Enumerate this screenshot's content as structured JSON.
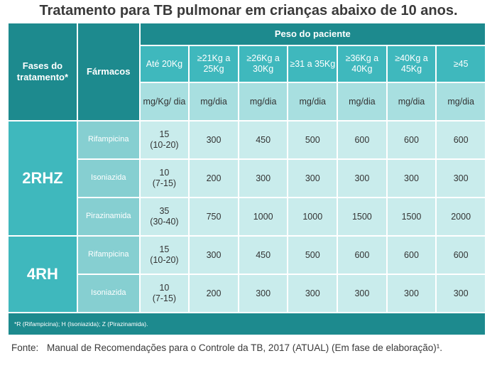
{
  "title": "Tratamento para TB pulmonar em crianças abaixo de 10 anos.",
  "header": {
    "phase_label": "Fases do tratamento*",
    "drug_label": "Fármacos",
    "weight_label": "Peso do paciente",
    "weight_ranges": [
      "Até 20Kg",
      "≥21Kg a 25Kg",
      "≥26Kg a 30Kg",
      "≥31 a 35Kg",
      "≥36Kg a 40Kg",
      "≥40Kg a 45Kg",
      "≥45"
    ],
    "units": [
      "mg/Kg/ dia",
      "mg/dia",
      "mg/dia",
      "mg/dia",
      "mg/dia",
      "mg/dia",
      "mg/dia"
    ]
  },
  "phases": [
    {
      "name": "2RHZ",
      "rows": [
        {
          "drug": "Rifampicina",
          "dose": "15",
          "dose_range": "(10-20)",
          "values": [
            "300",
            "450",
            "500",
            "600",
            "600",
            "600"
          ]
        },
        {
          "drug": "Isoniazida",
          "dose": "10",
          "dose_range": "(7-15)",
          "values": [
            "200",
            "300",
            "300",
            "300",
            "300",
            "300"
          ]
        },
        {
          "drug": "Pirazinamida",
          "dose": "35",
          "dose_range": "(30-40)",
          "values": [
            "750",
            "1000",
            "1000",
            "1500",
            "1500",
            "2000"
          ]
        }
      ]
    },
    {
      "name": "4RH",
      "rows": [
        {
          "drug": "Rifampicina",
          "dose": "15",
          "dose_range": "(10-20)",
          "values": [
            "300",
            "450",
            "500",
            "600",
            "600",
            "600"
          ]
        },
        {
          "drug": "Isoniazida",
          "dose": "10",
          "dose_range": "(7-15)",
          "values": [
            "200",
            "300",
            "300",
            "300",
            "300",
            "300"
          ]
        }
      ]
    }
  ],
  "footnote": "*R (Rifampicina); H (Isoniazida); Z (Pirazinamida).",
  "source": {
    "label": "Fonte:",
    "text": "Manual de Recomendações para o Controle da TB, 2017 (ATUAL) (Em fase de elaboração)¹."
  },
  "colors": {
    "dark_teal": "#1d8a8e",
    "mid_teal": "#3fb8bd",
    "light_teal": "#c9ecec",
    "drug_teal": "#86cfd1"
  }
}
